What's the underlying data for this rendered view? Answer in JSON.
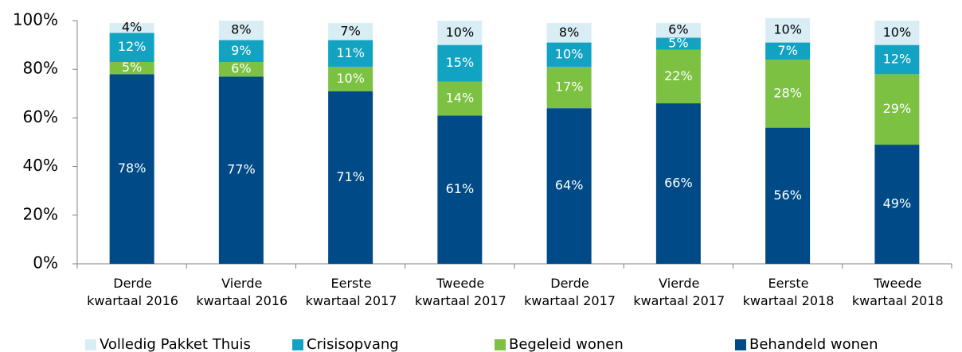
{
  "chart_data": {
    "type": "stacked_bar",
    "categories": [
      "Derde\nkwartaal 2016",
      "Vierde\nkwartaal 2016",
      "Eerste\nkwartaal 2017",
      "Tweede\nkwartaal 2017",
      "Derde\nkwartaal 2017",
      "Vierde\nkwartaal 2017",
      "Eerste\nkwartaal 2018",
      "Tweede\nkwartaal 2018"
    ],
    "series": [
      {
        "name": "Volledig Pakket Thuis",
        "color": "#d9edf5",
        "values": [
          4,
          8,
          7,
          10,
          8,
          6,
          10,
          10
        ],
        "value_labels": [
          "4%",
          "8%",
          "7%",
          "10%",
          "8%",
          "6%",
          "10%",
          "10%"
        ]
      },
      {
        "name": "Crisisopvang",
        "color": "#12a3c2",
        "values": [
          12,
          9,
          11,
          15,
          10,
          5,
          7,
          12
        ],
        "value_labels": [
          "12%",
          "9%",
          "11%",
          "15%",
          "10%",
          "5%",
          "7%",
          "12%"
        ]
      },
      {
        "name": "Begeleid wonen",
        "color": "#7cc142",
        "values": [
          5,
          6,
          10,
          14,
          17,
          22,
          28,
          29
        ],
        "value_labels": [
          "5%",
          "6%",
          "10%",
          "14%",
          "17%",
          "22%",
          "28%",
          "29%"
        ]
      },
      {
        "name": "Behandeld wonen",
        "color": "#004b87",
        "values": [
          78,
          77,
          71,
          61,
          64,
          66,
          56,
          49
        ],
        "value_labels": [
          "78%",
          "77%",
          "71%",
          "61%",
          "64%",
          "66%",
          "56%",
          "49%"
        ]
      }
    ],
    "ylim": [
      0,
      100
    ],
    "yticks": [
      {
        "value": 0,
        "label": "0%"
      },
      {
        "value": 20,
        "label": "20%"
      },
      {
        "value": 40,
        "label": "40%"
      },
      {
        "value": 60,
        "label": "60%"
      },
      {
        "value": 80,
        "label": "80%"
      },
      {
        "value": 100,
        "label": "100%"
      }
    ],
    "legend": "bottom"
  }
}
